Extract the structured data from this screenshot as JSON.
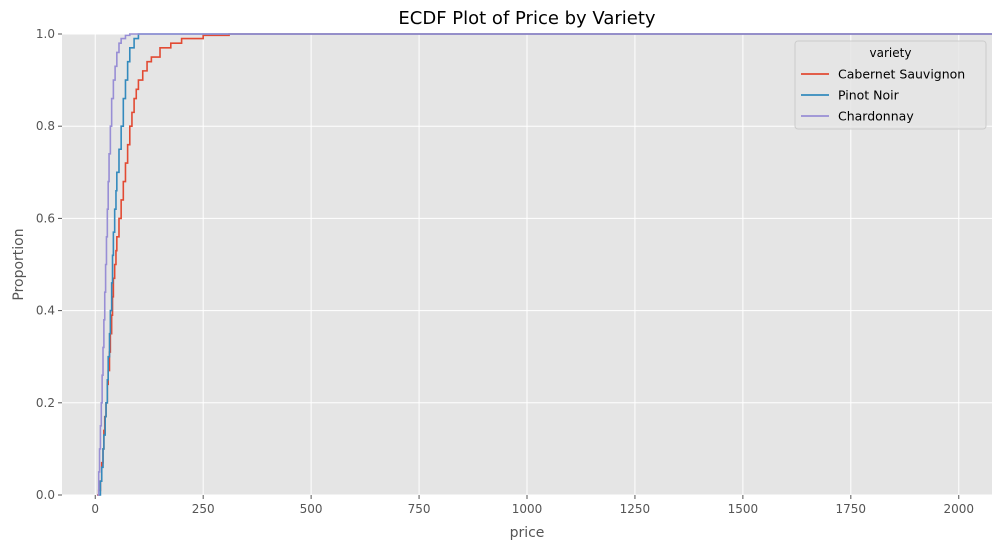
{
  "chart_data": {
    "type": "line",
    "title": "ECDF Plot of Price by Variety",
    "xlabel": "price",
    "ylabel": "Proportion",
    "xlim": [
      -77,
      2077
    ],
    "ylim": [
      0.0,
      1.0
    ],
    "x_ticks": [
      "0",
      "250",
      "500",
      "750",
      "1000",
      "1250",
      "1500",
      "1750",
      "2000"
    ],
    "x_tick_values": [
      0,
      250,
      500,
      750,
      1000,
      1250,
      1500,
      1750,
      2000
    ],
    "y_ticks": [
      "0.0",
      "0.2",
      "0.4",
      "0.6",
      "0.8",
      "1.0"
    ],
    "y_tick_values": [
      0.0,
      0.2,
      0.4,
      0.6,
      0.8,
      1.0
    ],
    "grid": true,
    "legend": {
      "title": "variety",
      "placement": "top-right"
    },
    "series": [
      {
        "name": "Cabernet Sauvignon",
        "color": "#E24A33",
        "points": [
          [
            4,
            0.0
          ],
          [
            8,
            0.01
          ],
          [
            12,
            0.03
          ],
          [
            15,
            0.07
          ],
          [
            18,
            0.1
          ],
          [
            20,
            0.14
          ],
          [
            22,
            0.17
          ],
          [
            25,
            0.2
          ],
          [
            28,
            0.24
          ],
          [
            30,
            0.27
          ],
          [
            33,
            0.31
          ],
          [
            35,
            0.35
          ],
          [
            38,
            0.39
          ],
          [
            40,
            0.43
          ],
          [
            42,
            0.47
          ],
          [
            45,
            0.5
          ],
          [
            48,
            0.53
          ],
          [
            50,
            0.56
          ],
          [
            55,
            0.6
          ],
          [
            60,
            0.64
          ],
          [
            65,
            0.68
          ],
          [
            70,
            0.72
          ],
          [
            75,
            0.76
          ],
          [
            80,
            0.8
          ],
          [
            85,
            0.83
          ],
          [
            90,
            0.86
          ],
          [
            95,
            0.88
          ],
          [
            100,
            0.9
          ],
          [
            110,
            0.92
          ],
          [
            120,
            0.94
          ],
          [
            130,
            0.95
          ],
          [
            150,
            0.97
          ],
          [
            175,
            0.98
          ],
          [
            200,
            0.99
          ],
          [
            250,
            0.997
          ],
          [
            310,
            1.0
          ]
        ]
      },
      {
        "name": "Pinot Noir",
        "color": "#348ABD",
        "points": [
          [
            8,
            0.0
          ],
          [
            12,
            0.03
          ],
          [
            15,
            0.06
          ],
          [
            18,
            0.1
          ],
          [
            20,
            0.13
          ],
          [
            23,
            0.17
          ],
          [
            25,
            0.2
          ],
          [
            28,
            0.25
          ],
          [
            30,
            0.3
          ],
          [
            33,
            0.35
          ],
          [
            35,
            0.4
          ],
          [
            38,
            0.46
          ],
          [
            40,
            0.52
          ],
          [
            42,
            0.57
          ],
          [
            45,
            0.62
          ],
          [
            48,
            0.66
          ],
          [
            50,
            0.7
          ],
          [
            55,
            0.75
          ],
          [
            60,
            0.8
          ],
          [
            65,
            0.86
          ],
          [
            70,
            0.9
          ],
          [
            75,
            0.94
          ],
          [
            80,
            0.97
          ],
          [
            90,
            0.99
          ],
          [
            100,
            1.0
          ]
        ]
      },
      {
        "name": "Chardonnay",
        "color": "#988ED5",
        "points": [
          [
            5,
            0.0
          ],
          [
            8,
            0.05
          ],
          [
            10,
            0.1
          ],
          [
            12,
            0.15
          ],
          [
            14,
            0.2
          ],
          [
            16,
            0.26
          ],
          [
            18,
            0.32
          ],
          [
            20,
            0.38
          ],
          [
            22,
            0.44
          ],
          [
            24,
            0.5
          ],
          [
            26,
            0.56
          ],
          [
            28,
            0.62
          ],
          [
            30,
            0.68
          ],
          [
            32,
            0.74
          ],
          [
            35,
            0.8
          ],
          [
            38,
            0.86
          ],
          [
            42,
            0.9
          ],
          [
            46,
            0.93
          ],
          [
            50,
            0.96
          ],
          [
            55,
            0.98
          ],
          [
            60,
            0.99
          ],
          [
            70,
            0.997
          ],
          [
            80,
            1.0
          ]
        ]
      }
    ]
  }
}
